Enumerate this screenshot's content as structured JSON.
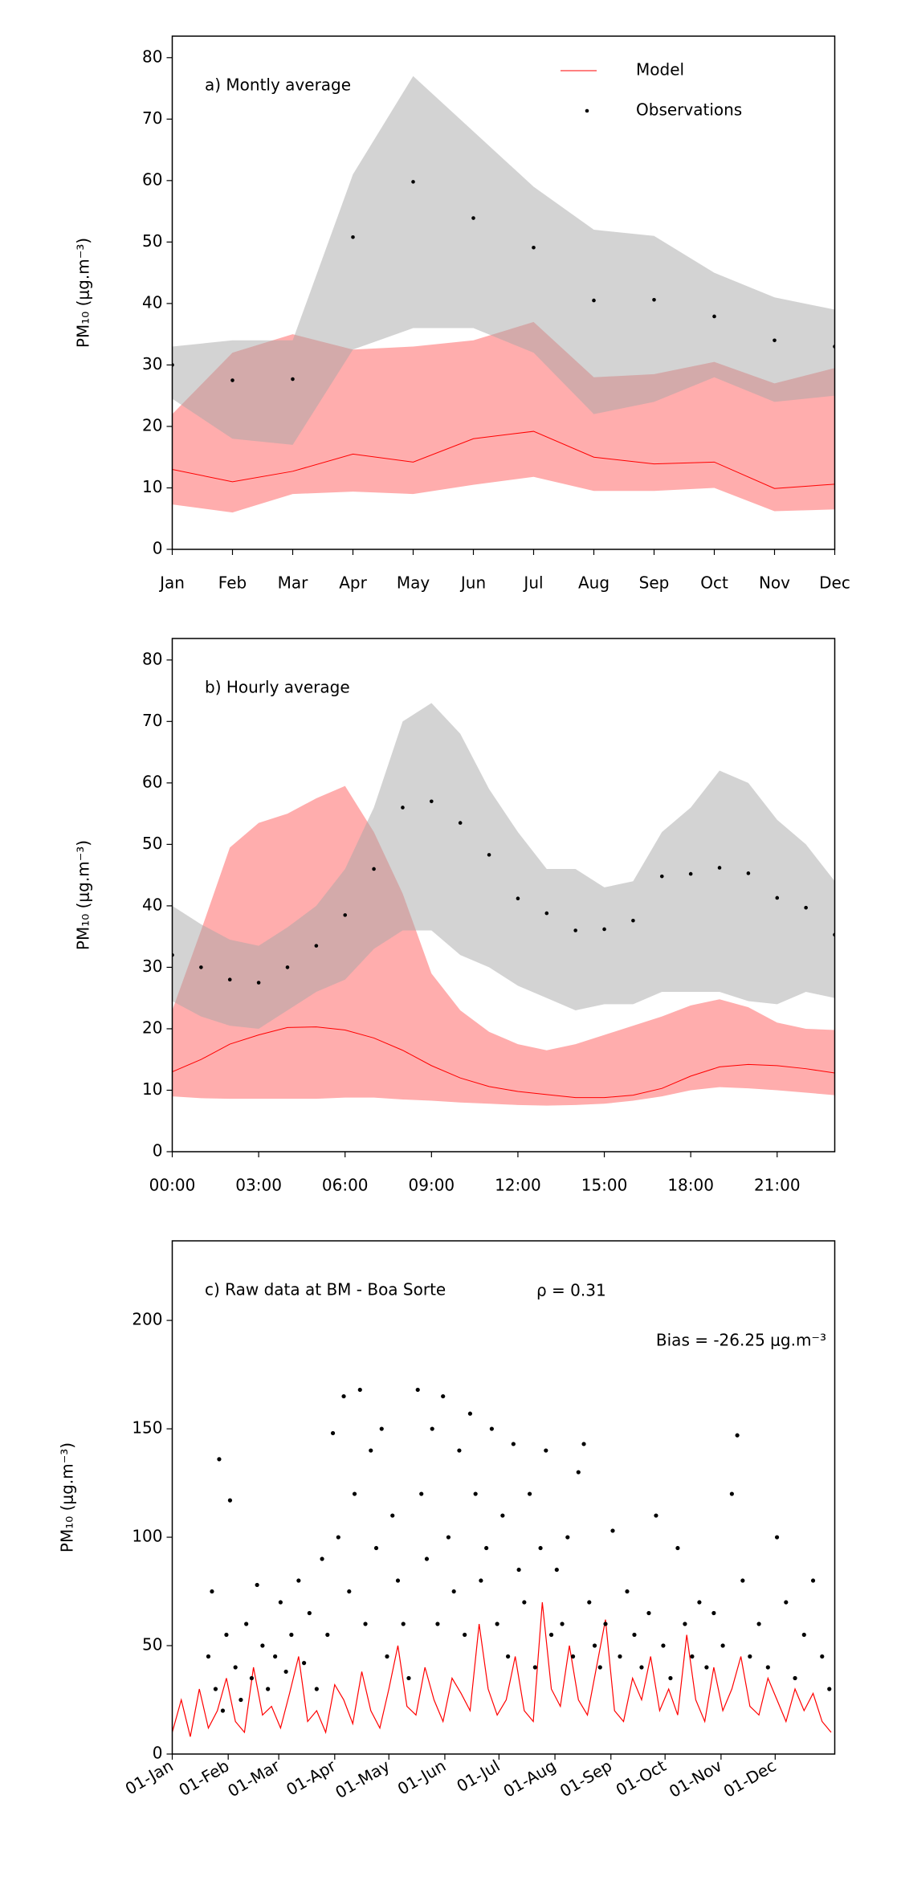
{
  "chart_data": [
    {
      "type": "line",
      "title": "a) Montly average",
      "ylabel": "PM₁₀ (μg.m⁻³)",
      "categories": [
        "Jan",
        "Feb",
        "Mar",
        "Apr",
        "May",
        "Jun",
        "Jul",
        "Aug",
        "Sep",
        "Oct",
        "Nov",
        "Dec"
      ],
      "ylim": [
        0,
        83.5
      ],
      "yticks": [
        0,
        10,
        20,
        30,
        40,
        50,
        60,
        70,
        80
      ],
      "legend": "upper right",
      "bands": [
        {
          "color": "#ff0000",
          "lower": [
            7.3,
            6,
            9,
            9.4,
            9,
            10.5,
            11.8,
            9.5,
            9.5,
            10,
            6.2,
            6.5
          ],
          "upper": [
            22,
            32,
            35,
            32.5,
            33,
            34,
            37,
            28,
            28.5,
            30.5,
            27,
            29.5
          ]
        },
        {
          "color": "#a8a8a8",
          "lower": [
            24.5,
            18,
            17,
            32.5,
            36,
            36,
            32,
            22,
            24,
            28,
            24,
            25
          ],
          "upper": [
            33,
            34,
            34,
            61,
            77,
            68,
            59,
            52,
            51,
            45,
            41,
            39
          ]
        }
      ],
      "series": [
        {
          "name": "Model",
          "style": "line",
          "color": "#ff0000",
          "values": [
            13,
            11,
            12.7,
            15.5,
            14.2,
            18,
            19.2,
            15,
            13.9,
            14.2,
            9.9,
            10.6
          ]
        },
        {
          "name": "Observations",
          "style": "dots",
          "color": "#000000",
          "values": [
            30,
            27.5,
            27.7,
            50.8,
            59.8,
            53.9,
            49.1,
            40.5,
            40.6,
            37.9,
            34,
            33
          ]
        }
      ]
    },
    {
      "type": "line",
      "title": "b) Hourly average",
      "ylabel": "PM₁₀ (μg.m⁻³)",
      "x": [
        0,
        1,
        2,
        3,
        4,
        5,
        6,
        7,
        8,
        9,
        10,
        11,
        12,
        13,
        14,
        15,
        16,
        17,
        18,
        19,
        20,
        21,
        22,
        23
      ],
      "xlim": [
        0,
        23
      ],
      "xticks": [
        {
          "value": 0,
          "label": "00:00"
        },
        {
          "value": 3,
          "label": "03:00"
        },
        {
          "value": 6,
          "label": "06:00"
        },
        {
          "value": 9,
          "label": "09:00"
        },
        {
          "value": 12,
          "label": "12:00"
        },
        {
          "value": 15,
          "label": "15:00"
        },
        {
          "value": 18,
          "label": "18:00"
        },
        {
          "value": 21,
          "label": "21:00"
        }
      ],
      "ylim": [
        0,
        83.5
      ],
      "yticks": [
        0,
        10,
        20,
        30,
        40,
        50,
        60,
        70,
        80
      ],
      "bands": [
        {
          "color": "#ff0000",
          "lower": [
            9,
            8.7,
            8.6,
            8.6,
            8.6,
            8.6,
            8.8,
            8.8,
            8.5,
            8.3,
            8,
            7.8,
            7.6,
            7.5,
            7.6,
            7.8,
            8.3,
            9,
            10,
            10.5,
            10.3,
            10,
            9.6,
            9.2
          ],
          "upper": [
            23,
            36,
            49.5,
            53.5,
            55,
            57.5,
            59.5,
            52,
            42,
            29,
            23,
            19.5,
            17.5,
            16.5,
            17.5,
            19,
            20.5,
            22,
            23.8,
            24.8,
            23.5,
            21,
            20,
            19.8
          ]
        },
        {
          "color": "#a8a8a8",
          "lower": [
            24.5,
            22,
            20.5,
            20,
            23,
            26,
            28,
            33,
            36,
            36,
            32,
            30,
            27,
            25,
            23,
            24,
            24,
            26,
            26,
            26,
            24.5,
            24,
            26,
            25
          ],
          "upper": [
            40,
            37,
            34.5,
            33.5,
            36.5,
            40,
            46,
            56,
            70,
            73,
            68,
            59,
            52,
            46,
            46,
            43,
            44,
            52,
            56,
            62,
            60,
            54,
            50,
            44
          ]
        }
      ],
      "series": [
        {
          "style": "line",
          "color": "#ff0000",
          "values": [
            13,
            15,
            17.5,
            19,
            20.2,
            20.3,
            19.8,
            18.5,
            16.5,
            14,
            12,
            10.6,
            9.8,
            9.3,
            8.8,
            8.8,
            9.2,
            10.3,
            12.3,
            13.8,
            14.2,
            14,
            13.5,
            12.8
          ]
        },
        {
          "style": "dots",
          "color": "#000000",
          "values": [
            32,
            30,
            28,
            27.5,
            30,
            33.5,
            38.5,
            46,
            56,
            57,
            53.5,
            48.3,
            41.2,
            38.8,
            36,
            36.2,
            37.6,
            44.8,
            45.2,
            46.2,
            45.3,
            41.3,
            39.7,
            35.3
          ]
        }
      ]
    },
    {
      "type": "line",
      "title": "c) Raw data at BM - Boa Sorte",
      "ylabel": "PM₁₀ (μg.m⁻³)",
      "annotations": [
        "ρ = 0.31",
        "Bias = -26.25 μg.m⁻³"
      ],
      "xlim": [
        0,
        367
      ],
      "xticks": [
        {
          "value": 0,
          "label": "01-Jan"
        },
        {
          "value": 31,
          "label": "01-Feb"
        },
        {
          "value": 59,
          "label": "01-Mar"
        },
        {
          "value": 90,
          "label": "01-Apr"
        },
        {
          "value": 120,
          "label": "01-May"
        },
        {
          "value": 151,
          "label": "01-Jun"
        },
        {
          "value": 181,
          "label": "01-Jul"
        },
        {
          "value": 212,
          "label": "01-Aug"
        },
        {
          "value": 243,
          "label": "01-Sep"
        },
        {
          "value": 273,
          "label": "01-Oct"
        },
        {
          "value": 304,
          "label": "01-Nov"
        },
        {
          "value": 334,
          "label": "01-Dec"
        }
      ],
      "ylim": [
        0,
        236.7
      ],
      "yticks": [
        0,
        50,
        100,
        150,
        200
      ],
      "bands": [],
      "series": [
        {
          "style": "line",
          "color": "#ff0000",
          "x": [
            0,
            5,
            10,
            15,
            20,
            25,
            30,
            35,
            40,
            45,
            50,
            55,
            60,
            65,
            70,
            75,
            80,
            85,
            90,
            95,
            100,
            105,
            110,
            115,
            120,
            125,
            130,
            135,
            140,
            145,
            150,
            155,
            160,
            165,
            170,
            175,
            180,
            185,
            190,
            195,
            200,
            205,
            210,
            215,
            220,
            225,
            230,
            235,
            240,
            245,
            250,
            255,
            260,
            265,
            270,
            275,
            280,
            285,
            290,
            295,
            300,
            305,
            310,
            315,
            320,
            325,
            330,
            335,
            340,
            345,
            350,
            355,
            360,
            365
          ],
          "values": [
            10,
            25,
            8,
            30,
            12,
            20,
            35,
            15,
            10,
            40,
            18,
            22,
            12,
            28,
            45,
            15,
            20,
            10,
            32,
            25,
            14,
            38,
            20,
            12,
            30,
            50,
            22,
            18,
            40,
            25,
            15,
            35,
            28,
            20,
            60,
            30,
            18,
            25,
            45,
            20,
            15,
            70,
            30,
            22,
            50,
            25,
            18,
            40,
            62,
            20,
            15,
            35,
            25,
            45,
            20,
            30,
            18,
            55,
            25,
            15,
            40,
            20,
            30,
            45,
            22,
            18,
            35,
            25,
            15,
            30,
            20,
            28,
            15,
            10
          ]
        },
        {
          "style": "dots",
          "color": "#000000",
          "x": [
            20,
            22,
            24,
            26,
            28,
            30,
            32,
            35,
            38,
            41,
            44,
            47,
            50,
            53,
            57,
            60,
            63,
            66,
            70,
            73,
            76,
            80,
            83,
            86,
            89,
            92,
            95,
            98,
            101,
            104,
            107,
            110,
            113,
            116,
            119,
            122,
            125,
            128,
            131,
            136,
            138,
            141,
            144,
            147,
            150,
            153,
            156,
            159,
            162,
            165,
            168,
            171,
            174,
            177,
            180,
            183,
            186,
            189,
            192,
            195,
            198,
            201,
            204,
            207,
            210,
            213,
            216,
            219,
            222,
            225,
            228,
            231,
            234,
            237,
            240,
            244,
            248,
            252,
            256,
            260,
            264,
            268,
            272,
            276,
            280,
            284,
            288,
            292,
            296,
            300,
            305,
            310,
            313,
            316,
            320,
            325,
            330,
            335,
            340,
            345,
            350,
            355,
            360,
            364
          ],
          "values": [
            45,
            75,
            30,
            136,
            20,
            55,
            117,
            40,
            25,
            60,
            35,
            78,
            50,
            30,
            45,
            70,
            38,
            55,
            80,
            42,
            65,
            30,
            90,
            55,
            148,
            100,
            165,
            75,
            120,
            168,
            60,
            140,
            95,
            150,
            45,
            110,
            80,
            60,
            35,
            168,
            120,
            90,
            150,
            60,
            165,
            100,
            75,
            140,
            55,
            157,
            120,
            80,
            95,
            150,
            60,
            110,
            45,
            143,
            85,
            70,
            120,
            40,
            95,
            140,
            55,
            85,
            60,
            100,
            45,
            130,
            143,
            70,
            50,
            40,
            60,
            103,
            45,
            75,
            55,
            40,
            65,
            110,
            50,
            35,
            95,
            60,
            45,
            70,
            40,
            65,
            50,
            120,
            147,
            80,
            45,
            60,
            40,
            100,
            70,
            35,
            55,
            80,
            45,
            30
          ]
        }
      ]
    }
  ]
}
